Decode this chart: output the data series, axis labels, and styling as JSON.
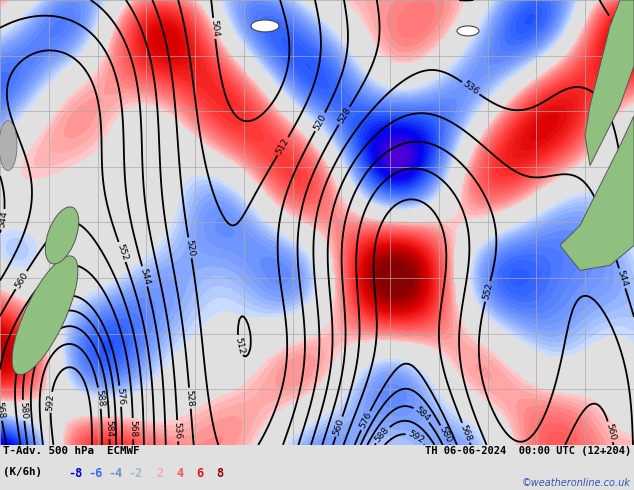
{
  "title_line1": "T-Adv. 500 hPa  ECMWF",
  "title_line2": "TH 06-06-2024  00:00 UTC (12+204)",
  "label_left": "(K/6h)",
  "neg_labels": [
    "-8",
    "-6",
    "-4",
    "-2"
  ],
  "pos_labels": [
    "2",
    "4",
    "6",
    "8"
  ],
  "neg_colors": [
    "#0000cc",
    "#4466ff",
    "#7799cc",
    "#aabbdd"
  ],
  "pos_colors": [
    "#ffbbbb",
    "#ff6666",
    "#dd2222",
    "#aa0000"
  ],
  "credit": "©weatheronline.co.uk",
  "bg_color": "#e0e0e0",
  "land_color_aus": "#90c080",
  "land_color_nz": "#90c080",
  "ocean_color": "#e8e8e8",
  "figsize": [
    6.34,
    4.9
  ],
  "dpi": 100,
  "geo_levels": [
    504,
    512,
    520,
    528,
    536,
    544,
    552,
    560,
    568,
    576,
    580,
    584,
    588,
    592
  ],
  "grid_color": "#aaaaaa",
  "grid_lw": 0.5
}
